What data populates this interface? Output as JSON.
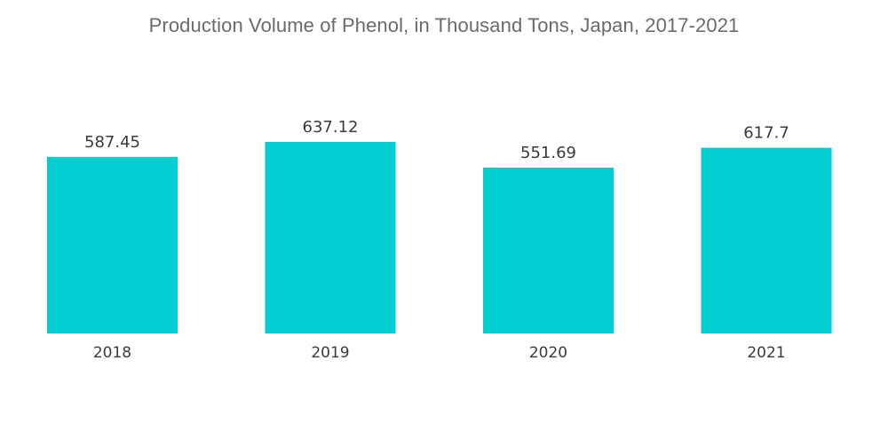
{
  "chart_data": {
    "type": "bar",
    "title": "Production Volume of Phenol, in Thousand Tons, Japan, 2017-2021",
    "categories": [
      "2018",
      "2019",
      "2020",
      "2021"
    ],
    "values": [
      587.45,
      637.12,
      551.69,
      617.7
    ],
    "value_labels": [
      "587.45",
      "637.12",
      "551.69",
      "617.7"
    ],
    "xlabel": "",
    "ylabel": "",
    "ylim": [
      0,
      637.12
    ],
    "grid": false,
    "legend": "none",
    "bar_color": "#00CED1"
  }
}
